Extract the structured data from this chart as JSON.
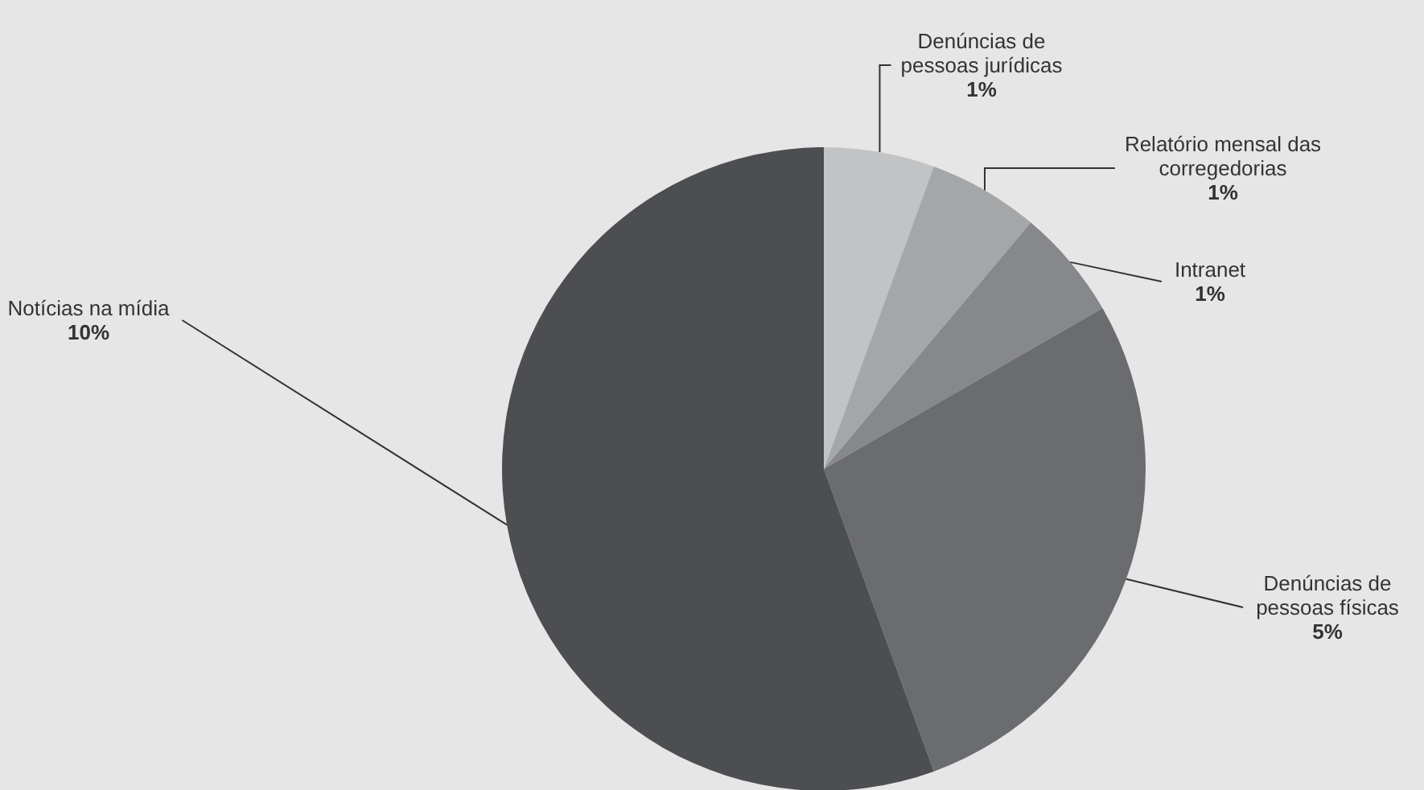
{
  "chart_data": {
    "type": "pie",
    "categories": [
      "Denúncias de pessoas jurídicas",
      "Relatório mensal das corregedorias",
      "Intranet",
      "Denúncias de pessoas físicas",
      "Notícias na mídia"
    ],
    "values": [
      1,
      1,
      1,
      5,
      10
    ],
    "value_labels": [
      "1%",
      "1%",
      "1%",
      "5%",
      "10%"
    ],
    "colors": [
      "#c2c3c5",
      "#a5a6a8",
      "#87888b",
      "#6b6c6f",
      "#4d4e51"
    ],
    "legend": false
  }
}
